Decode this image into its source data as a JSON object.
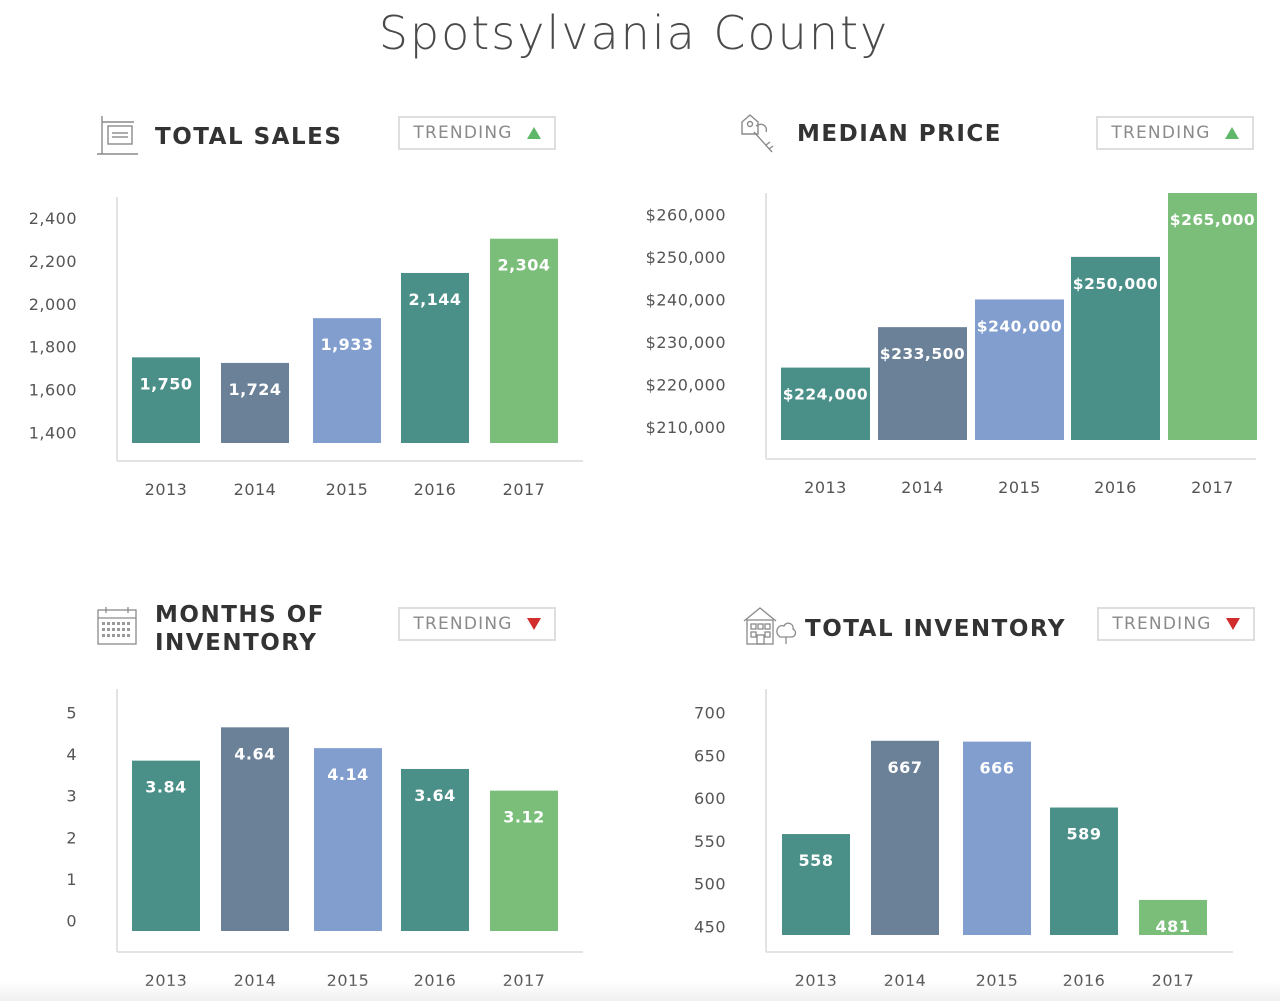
{
  "page_title": "Spotsylvania County",
  "trend_label": "TRENDING",
  "colors": {
    "teal": "#4a9089",
    "slate": "#6b8198",
    "periwinkle": "#829ecf",
    "green": "#7bbe7a",
    "up": "#5fb86a",
    "down": "#d22d2d"
  },
  "panels": {
    "total_sales": {
      "title": "TOTAL SALES",
      "trend": "up",
      "icon": "sign-post-icon"
    },
    "median_price": {
      "title": "MEDIAN PRICE",
      "trend": "up",
      "icon": "house-keys-icon"
    },
    "months_inventory": {
      "title_line1": "MONTHS OF",
      "title_line2": "INVENTORY",
      "trend": "down",
      "icon": "calendar-icon"
    },
    "total_inventory": {
      "title": "TOTAL INVENTORY",
      "trend": "down",
      "icon": "houses-icon"
    }
  },
  "chart_data": [
    {
      "id": "total_sales",
      "type": "bar",
      "categories": [
        "2013",
        "2014",
        "2015",
        "2016",
        "2017"
      ],
      "values": [
        1750,
        1724,
        1933,
        2144,
        2304
      ],
      "value_labels": [
        "1,750",
        "1,724",
        "1,933",
        "2,144",
        "2,304"
      ],
      "yticks": [
        1400,
        1600,
        1800,
        2000,
        2200,
        2400
      ],
      "ytick_labels": [
        "1,400",
        "1,600",
        "1,800",
        "2,000",
        "2,200",
        "2,400"
      ],
      "ylim": [
        1350,
        2410
      ],
      "bar_colors": [
        "#4a9089",
        "#6b8198",
        "#829ecf",
        "#4a9089",
        "#7bbe7a"
      ],
      "grid": false
    },
    {
      "id": "median_price",
      "type": "bar",
      "categories": [
        "2013",
        "2014",
        "2015",
        "2016",
        "2017"
      ],
      "values": [
        224000,
        233500,
        240000,
        250000,
        265000
      ],
      "value_labels": [
        "$224,000",
        "$233,500",
        "$240,000",
        "$250,000",
        "$265,000"
      ],
      "yticks": [
        210000,
        220000,
        230000,
        240000,
        250000,
        260000
      ],
      "ytick_labels": [
        "$210,000",
        "$220,000",
        "$230,000",
        "$240,000",
        "$250,000",
        "$260,000"
      ],
      "ylim": [
        207000,
        265000
      ],
      "bar_colors": [
        "#4a9089",
        "#6b8198",
        "#829ecf",
        "#4a9089",
        "#7bbe7a"
      ],
      "grid": false
    },
    {
      "id": "months_inventory",
      "type": "bar",
      "categories": [
        "2013",
        "2014",
        "2015",
        "2016",
        "2017"
      ],
      "values": [
        3.84,
        4.64,
        4.14,
        3.64,
        3.12
      ],
      "value_labels": [
        "3.84",
        "4.64",
        "4.14",
        "3.64",
        "3.12"
      ],
      "yticks": [
        0,
        1,
        2,
        3,
        4,
        5
      ],
      "ytick_labels": [
        "0",
        "1",
        "2",
        "3",
        "4",
        "5"
      ],
      "ylim": [
        -0.25,
        5.2
      ],
      "bar_colors": [
        "#4a9089",
        "#6b8198",
        "#829ecf",
        "#4a9089",
        "#7bbe7a"
      ],
      "grid": false
    },
    {
      "id": "total_inventory",
      "type": "bar",
      "categories": [
        "2013",
        "2014",
        "2015",
        "2016",
        "2017"
      ],
      "values": [
        558,
        667,
        666,
        589,
        481
      ],
      "value_labels": [
        "558",
        "667",
        "666",
        "589",
        "481"
      ],
      "yticks": [
        450,
        500,
        550,
        600,
        650,
        700
      ],
      "ytick_labels": [
        "450",
        "500",
        "550",
        "600",
        "650",
        "700"
      ],
      "ylim": [
        440,
        710
      ],
      "bar_colors": [
        "#4a9089",
        "#6b8198",
        "#829ecf",
        "#4a9089",
        "#7bbe7a"
      ],
      "grid": false
    }
  ]
}
